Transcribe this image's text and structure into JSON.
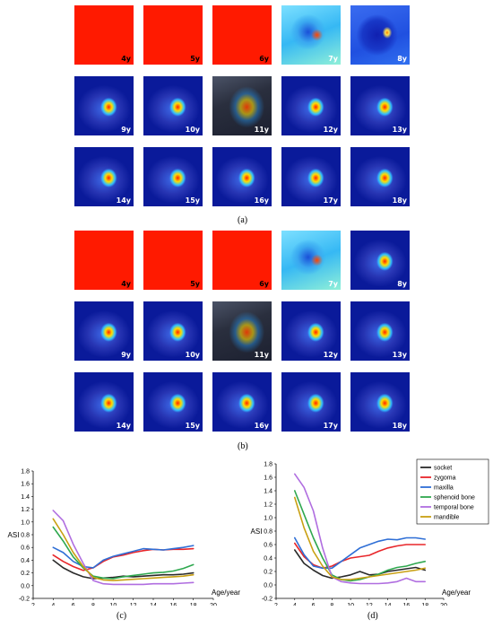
{
  "panels": {
    "a_label": "(a)",
    "b_label": "(b)",
    "c_label": "(c)",
    "d_label": "(d)"
  },
  "heatmaps": {
    "a_ages": [
      "4y",
      "5y",
      "6y",
      "7y",
      "8y",
      "9y",
      "10y",
      "11y",
      "12y",
      "13y",
      "14y",
      "15y",
      "16y",
      "17y",
      "18y"
    ],
    "b_ages": [
      "4y",
      "5y",
      "6y",
      "7y",
      "8y",
      "9y",
      "10y",
      "11y",
      "12y",
      "13y",
      "14y",
      "15y",
      "16y",
      "17y",
      "18y"
    ]
  },
  "colors": {
    "socket": "#2a2a2a",
    "zygoma": "#e8262a",
    "maxilla": "#2f6fd6",
    "sphenoid": "#2fa84f",
    "temporal": "#b06ee0",
    "mandible": "#c9a012"
  },
  "chart_data": [
    {
      "type": "line",
      "panel": "(c)",
      "xlabel": "Age/year",
      "ylabel": "ASI",
      "xlim": [
        2,
        20
      ],
      "ylim": [
        -0.2,
        1.8
      ],
      "xticks": [
        2,
        4,
        6,
        8,
        10,
        12,
        14,
        16,
        18,
        20
      ],
      "yticks": [
        -0.2,
        0.0,
        0.2,
        0.4,
        0.6,
        0.8,
        1.0,
        1.2,
        1.4,
        1.6,
        1.8
      ],
      "x": [
        4,
        5,
        6,
        7,
        8,
        9,
        10,
        11,
        12,
        13,
        14,
        15,
        16,
        17,
        18
      ],
      "series": [
        {
          "name": "socket",
          "values": [
            0.4,
            0.28,
            0.2,
            0.14,
            0.11,
            0.12,
            0.13,
            0.15,
            0.14,
            0.15,
            0.16,
            0.17,
            0.17,
            0.18,
            0.2
          ]
        },
        {
          "name": "zygoma",
          "values": [
            0.48,
            0.38,
            0.3,
            0.24,
            0.28,
            0.38,
            0.45,
            0.48,
            0.52,
            0.55,
            0.57,
            0.56,
            0.57,
            0.57,
            0.58
          ]
        },
        {
          "name": "maxilla",
          "values": [
            0.6,
            0.52,
            0.38,
            0.3,
            0.28,
            0.4,
            0.46,
            0.5,
            0.54,
            0.58,
            0.57,
            0.56,
            0.58,
            0.6,
            0.63
          ]
        },
        {
          "name": "sphenoid bone",
          "values": [
            0.92,
            0.7,
            0.45,
            0.28,
            0.15,
            0.12,
            0.11,
            0.14,
            0.16,
            0.18,
            0.2,
            0.21,
            0.23,
            0.27,
            0.33
          ]
        },
        {
          "name": "temporal bone",
          "values": [
            1.18,
            1.02,
            0.65,
            0.35,
            0.08,
            0.03,
            0.02,
            0.02,
            0.02,
            0.02,
            0.03,
            0.03,
            0.03,
            0.04,
            0.05
          ]
        },
        {
          "name": "mandible",
          "values": [
            1.05,
            0.8,
            0.52,
            0.3,
            0.13,
            0.09,
            0.08,
            0.09,
            0.1,
            0.11,
            0.12,
            0.13,
            0.14,
            0.15,
            0.17
          ]
        }
      ]
    },
    {
      "type": "line",
      "panel": "(d)",
      "xlabel": "Age/year",
      "ylabel": "ASI",
      "xlim": [
        2,
        20
      ],
      "ylim": [
        -0.2,
        1.8
      ],
      "xticks": [
        2,
        4,
        6,
        8,
        10,
        12,
        14,
        16,
        18,
        20
      ],
      "yticks": [
        -0.2,
        0.0,
        0.2,
        0.4,
        0.6,
        0.8,
        1.0,
        1.2,
        1.4,
        1.6,
        1.8
      ],
      "x": [
        4,
        5,
        6,
        7,
        8,
        9,
        10,
        11,
        12,
        13,
        14,
        15,
        16,
        17,
        18
      ],
      "legend": [
        "socket",
        "zygoma",
        "maxilla",
        "sphenoid bone",
        "temporal bone",
        "mandible"
      ],
      "legend_position": "top-right",
      "series": [
        {
          "name": "socket",
          "values": [
            0.52,
            0.32,
            0.22,
            0.14,
            0.1,
            0.12,
            0.15,
            0.2,
            0.15,
            0.16,
            0.2,
            0.22,
            0.24,
            0.26,
            0.22
          ]
        },
        {
          "name": "zygoma",
          "values": [
            0.62,
            0.42,
            0.3,
            0.25,
            0.28,
            0.35,
            0.4,
            0.42,
            0.44,
            0.5,
            0.55,
            0.58,
            0.6,
            0.6,
            0.6
          ]
        },
        {
          "name": "maxilla",
          "values": [
            0.7,
            0.45,
            0.28,
            0.25,
            0.25,
            0.35,
            0.45,
            0.55,
            0.6,
            0.65,
            0.68,
            0.67,
            0.7,
            0.7,
            0.68
          ]
        },
        {
          "name": "sphenoid bone",
          "values": [
            1.4,
            1.05,
            0.7,
            0.4,
            0.15,
            0.08,
            0.06,
            0.08,
            0.12,
            0.16,
            0.22,
            0.26,
            0.28,
            0.32,
            0.35
          ]
        },
        {
          "name": "temporal bone",
          "values": [
            1.65,
            1.45,
            1.1,
            0.55,
            0.12,
            0.05,
            0.03,
            0.02,
            0.02,
            0.02,
            0.03,
            0.05,
            0.1,
            0.05,
            0.05
          ]
        },
        {
          "name": "mandible",
          "values": [
            1.3,
            0.85,
            0.5,
            0.28,
            0.12,
            0.08,
            0.08,
            0.1,
            0.12,
            0.14,
            0.16,
            0.18,
            0.2,
            0.22,
            0.25
          ]
        }
      ]
    }
  ]
}
